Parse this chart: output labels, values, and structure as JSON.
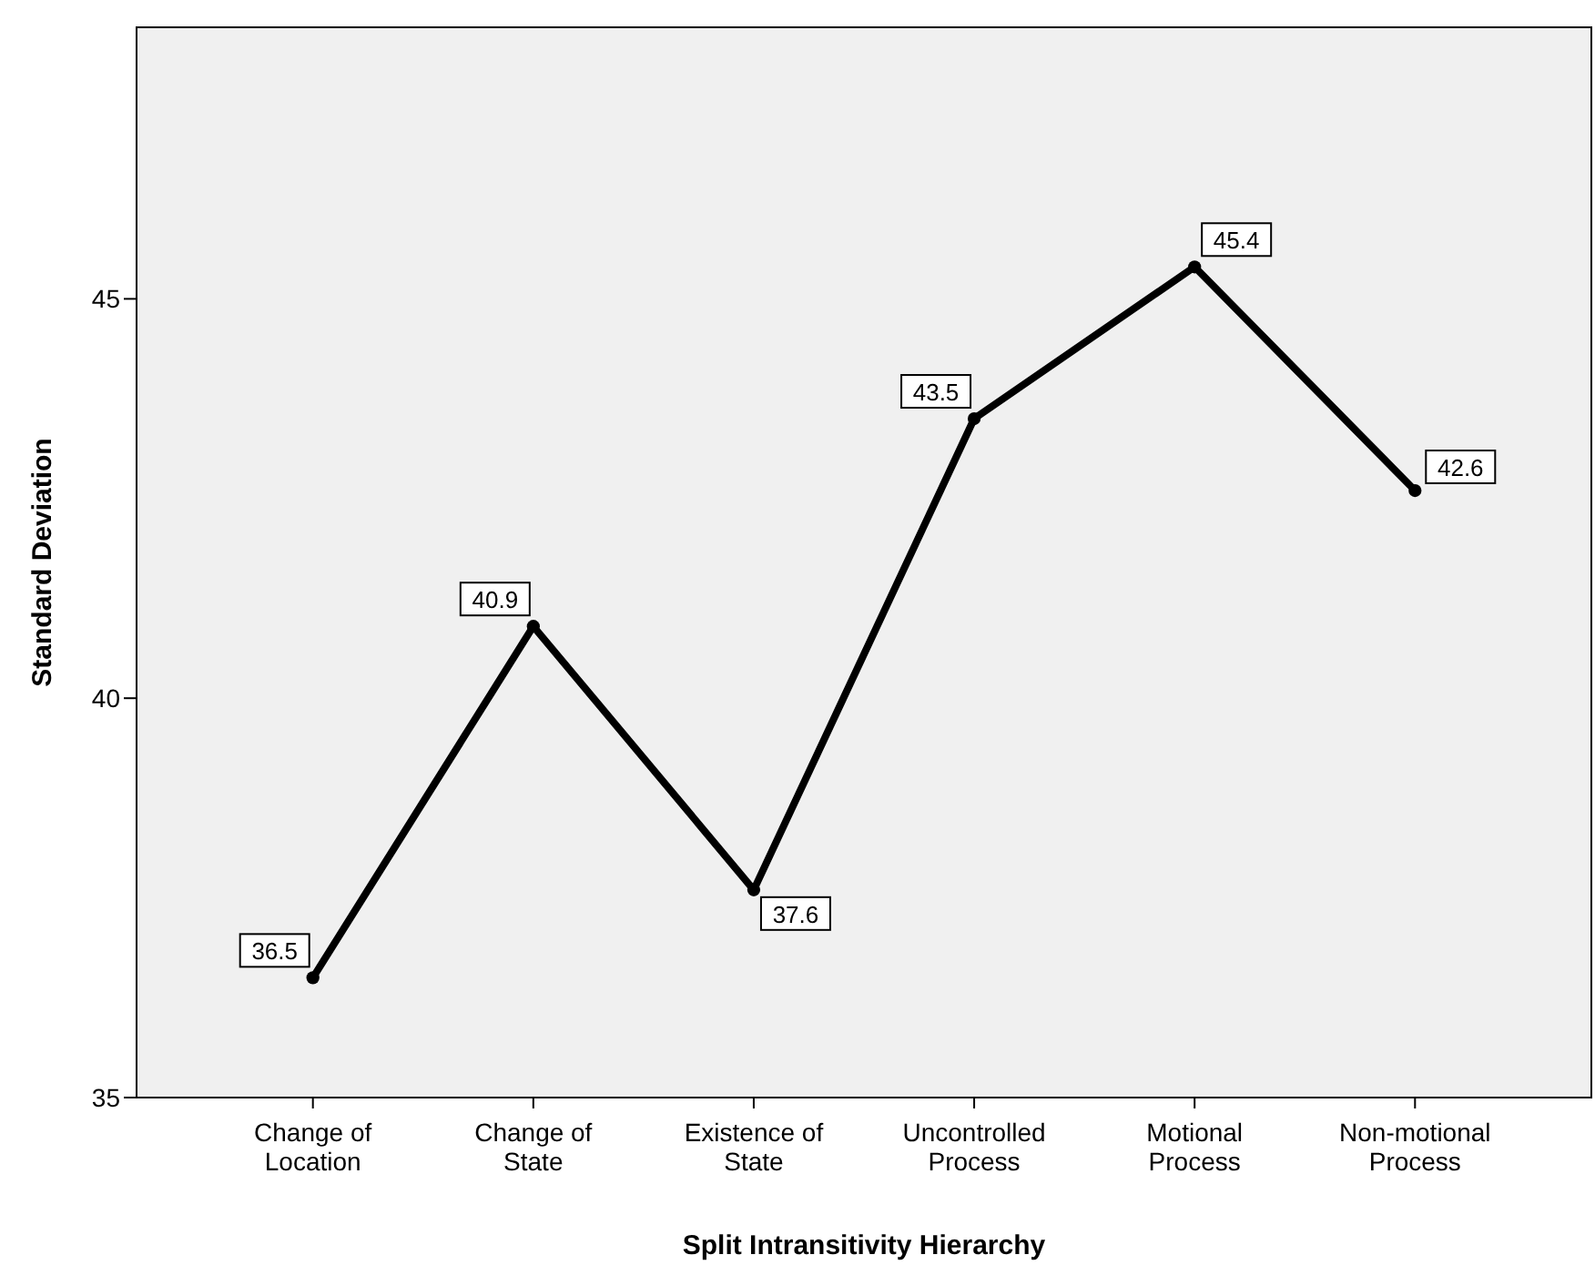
{
  "chart_data": {
    "type": "line",
    "xlabel": "Split Intransitivity Hierarchy",
    "ylabel": "Standard Deviation",
    "categories": [
      "Change of\nLocation",
      "Change of\nState",
      "Existence of\nState",
      "Uncontrolled\nProcess",
      "Motional\nProcess",
      "Non-motional\nProcess"
    ],
    "series": [
      {
        "color": "#000000",
        "values": [
          36.5,
          40.9,
          37.6,
          43.5,
          45.4,
          42.6
        ]
      }
    ],
    "ylim": [
      35,
      48.4
    ],
    "yticks": [
      35,
      40,
      45
    ],
    "grid": false,
    "marker": "circle",
    "line_style": "solid",
    "data_labels": true
  }
}
